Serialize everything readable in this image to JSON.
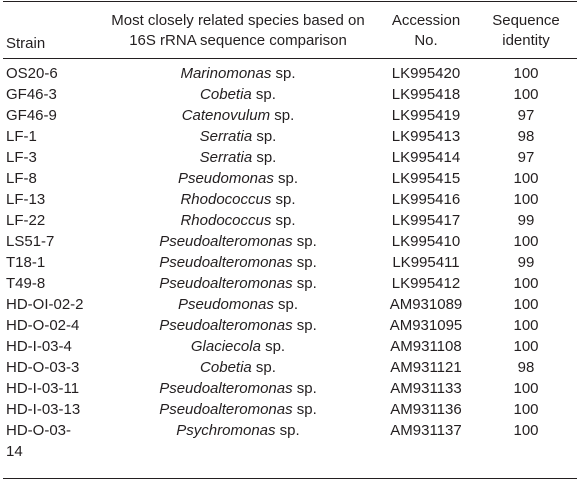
{
  "header": {
    "strain": "Strain",
    "species": "Most closely related species based on 16S rRNA sequence comparison",
    "accession": "Accession No.",
    "identity": "Sequence identity"
  },
  "rows": [
    {
      "strain": "OS20-6",
      "genus": "Marinomonas",
      "suffix": " sp.",
      "accession": "LK995420",
      "identity": "100"
    },
    {
      "strain": "GF46-3",
      "genus": "Cobetia",
      "suffix": " sp.",
      "accession": "LK995418",
      "identity": "100"
    },
    {
      "strain": "GF46-9",
      "genus": "Catenovulum",
      "suffix": " sp.",
      "accession": "LK995419",
      "identity": "97"
    },
    {
      "strain": "LF-1",
      "genus": "Serratia",
      "suffix": " sp.",
      "accession": "LK995413",
      "identity": "98"
    },
    {
      "strain": "LF-3",
      "genus": "Serratia",
      "suffix": " sp.",
      "accession": "LK995414",
      "identity": "97"
    },
    {
      "strain": "LF-8",
      "genus": "Pseudomonas",
      "suffix": " sp.",
      "accession": "LK995415",
      "identity": "100"
    },
    {
      "strain": "LF-13",
      "genus": "Rhodococcus",
      "suffix": " sp.",
      "accession": "LK995416",
      "identity": "100"
    },
    {
      "strain": "LF-22",
      "genus": "Rhodococcus",
      "suffix": " sp.",
      "accession": "LK995417",
      "identity": "99"
    },
    {
      "strain": "LS51-7",
      "genus": "Pseudoalteromonas",
      "suffix": " sp.",
      "accession": "LK995410",
      "identity": "100"
    },
    {
      "strain": "T18-1",
      "genus": "Pseudoalteromonas",
      "suffix": " sp.",
      "accession": "LK995411",
      "identity": "99"
    },
    {
      "strain": "T49-8",
      "genus": "Pseudoalteromonas",
      "suffix": " sp.",
      "accession": "LK995412",
      "identity": "100"
    },
    {
      "strain": "HD-OI-02-2",
      "genus": "Pseudomonas",
      "suffix": " sp.",
      "accession": "AM931089",
      "identity": "100"
    },
    {
      "strain": "HD-O-02-4",
      "genus": "Pseudoalteromonas",
      "suffix": " sp.",
      "accession": "AM931095",
      "identity": "100"
    },
    {
      "strain": "HD-I-03-4",
      "genus": "Glaciecola",
      "suffix": " sp.",
      "accession": "AM931108",
      "identity": "100"
    },
    {
      "strain": "HD-O-03-3",
      "genus": "Cobetia",
      "suffix": " sp.",
      "accession": "AM931121",
      "identity": "98"
    },
    {
      "strain": "HD-I-03-11",
      "genus": "Pseudoalteromonas",
      "suffix": " sp.",
      "accession": "AM931133",
      "identity": "100"
    },
    {
      "strain": "HD-I-03-13",
      "genus": "Pseudoalteromonas",
      "suffix": " sp.",
      "accession": "AM931136",
      "identity": "100"
    },
    {
      "strain": "HD-O-03-14",
      "strain_line1": "HD-O-03-",
      "strain_line2": "14",
      "genus": "Psychromonas",
      "suffix": " sp.",
      "accession": "AM931137",
      "identity": "100"
    }
  ]
}
